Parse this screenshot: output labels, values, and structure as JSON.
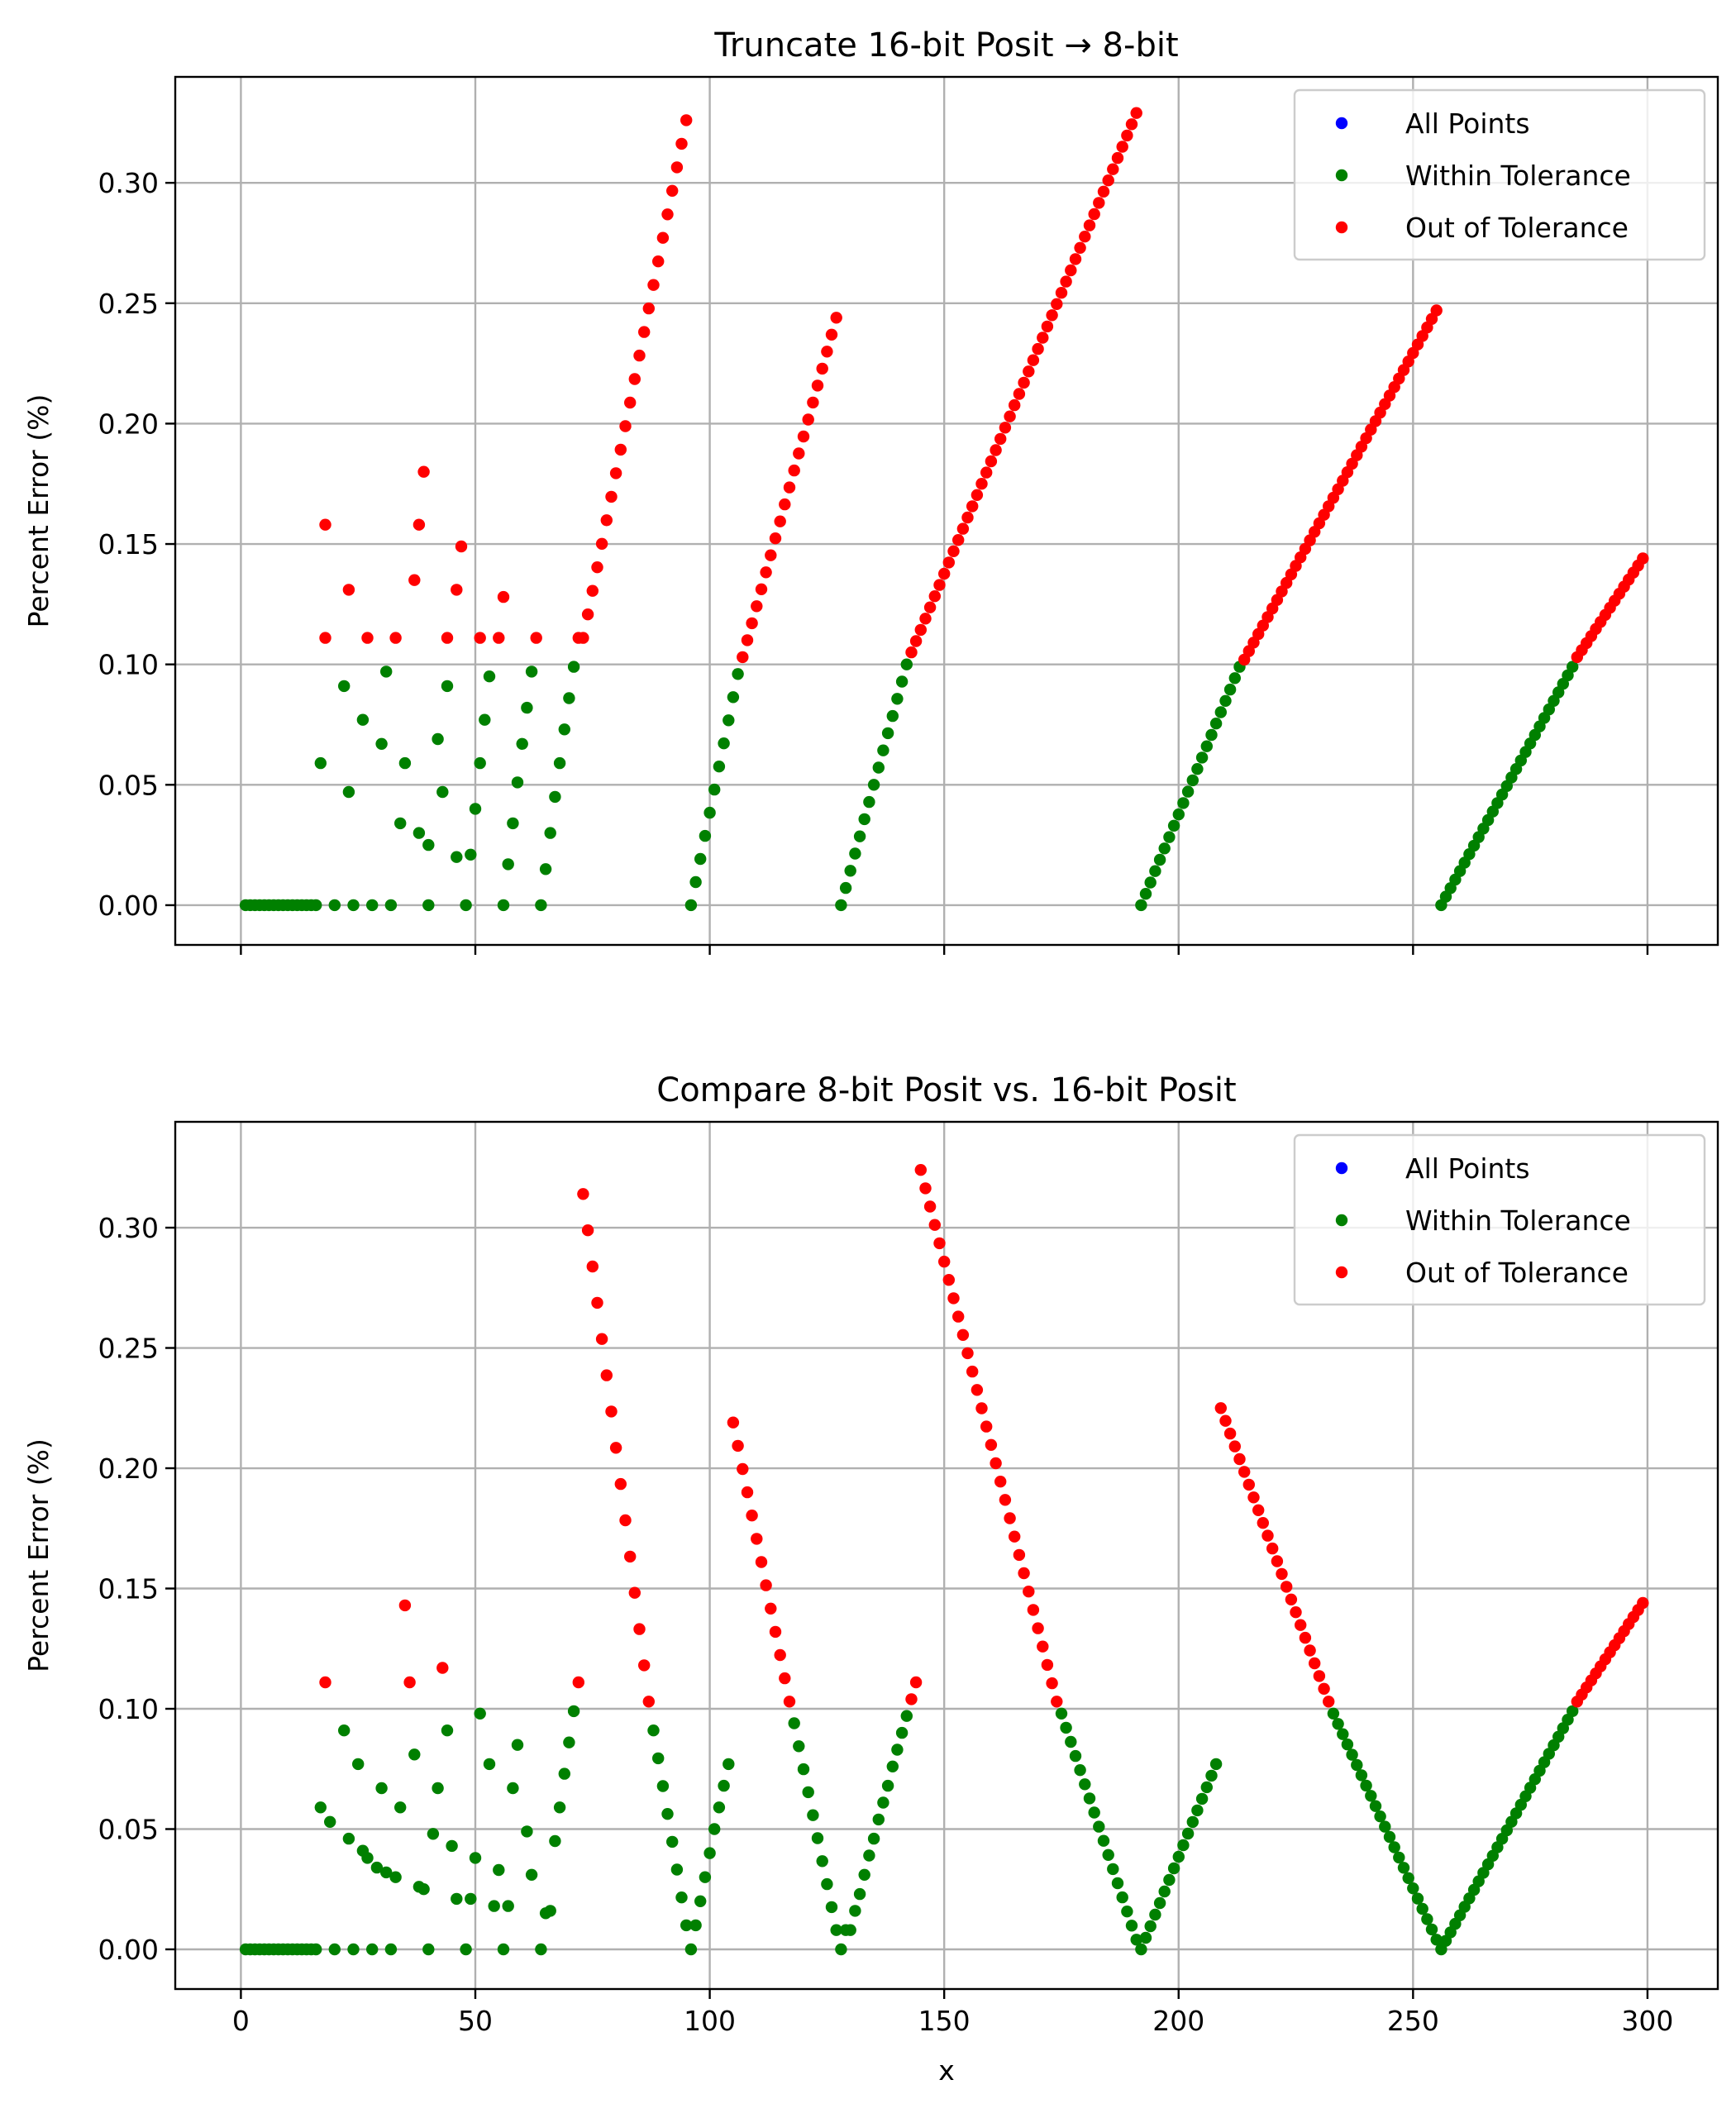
{
  "figure": {
    "xlabel": "x"
  },
  "legend": {
    "entries": [
      {
        "label": "All Points",
        "color": "#0000ff"
      },
      {
        "label": "Within Tolerance",
        "color": "#008000"
      },
      {
        "label": "Out of Tolerance",
        "color": "#ff0000"
      }
    ]
  },
  "tolerance": 0.1,
  "chart_data": [
    {
      "type": "scatter",
      "title": "Truncate 16-bit Posit → 8-bit",
      "xlabel": "",
      "ylabel": "Percent Error (%)",
      "xlim": [
        -14,
        315
      ],
      "ylim": [
        -0.0165,
        0.344
      ],
      "xticks": [
        0,
        50,
        100,
        150,
        200,
        250,
        300
      ],
      "xtick_labels_shown": false,
      "yticks": [
        "0.00",
        "0.05",
        "0.10",
        "0.15",
        "0.20",
        "0.25",
        "0.30"
      ],
      "grid": true,
      "legend_position": "top-right",
      "series": [
        {
          "kind": "points",
          "x": [
            1,
            2,
            3,
            4,
            5,
            6,
            7,
            8,
            9,
            10,
            11,
            12,
            13,
            14,
            15,
            16,
            20,
            24,
            28,
            32,
            40,
            48,
            56,
            64
          ],
          "y": [
            0,
            0,
            0,
            0,
            0,
            0,
            0,
            0,
            0,
            0,
            0,
            0,
            0,
            0,
            0,
            0,
            0,
            0,
            0,
            0,
            0,
            0,
            0,
            0
          ]
        },
        {
          "kind": "points",
          "x": [
            17,
            18,
            22,
            23,
            26,
            30,
            31,
            34,
            35,
            38,
            40,
            42,
            43,
            44,
            46,
            49,
            50,
            51,
            52,
            53,
            57,
            58,
            59,
            60,
            61,
            62,
            65,
            66,
            67,
            68,
            69,
            70,
            71
          ],
          "y": [
            0.059,
            0.111,
            0.091,
            0.047,
            0.077,
            0.067,
            0.097,
            0.034,
            0.059,
            0.03,
            0.025,
            0.069,
            0.047,
            0.091,
            0.02,
            0.021,
            0.04,
            0.059,
            0.077,
            0.095,
            0.017,
            0.034,
            0.051,
            0.067,
            0.082,
            0.097,
            0.015,
            0.03,
            0.045,
            0.059,
            0.073,
            0.086,
            0.099
          ]
        },
        {
          "kind": "points",
          "x": [
            18,
            23,
            27,
            33,
            37,
            38,
            39,
            44,
            46,
            47,
            51,
            55,
            56,
            63,
            72
          ],
          "y": [
            0.158,
            0.131,
            0.111,
            0.111,
            0.135,
            0.158,
            0.18,
            0.111,
            0.131,
            0.149,
            0.111,
            0.111,
            0.128,
            0.111,
            0.111
          ]
        },
        {
          "kind": "ramp",
          "x0": 73,
          "x1": 95,
          "y0": 0.111,
          "y1": 0.326
        },
        {
          "kind": "ramp",
          "x0": 96,
          "x1": 106,
          "y0": 0.0,
          "y1": 0.096
        },
        {
          "kind": "ramp",
          "x0": 107,
          "x1": 127,
          "y0": 0.103,
          "y1": 0.244
        },
        {
          "kind": "ramp",
          "x0": 128,
          "x1": 142,
          "y0": 0.0,
          "y1": 0.1
        },
        {
          "kind": "ramp",
          "x0": 143,
          "x1": 191,
          "y0": 0.105,
          "y1": 0.329
        },
        {
          "kind": "ramp",
          "x0": 192,
          "x1": 213,
          "y0": 0.0,
          "y1": 0.099
        },
        {
          "kind": "ramp",
          "x0": 214,
          "x1": 255,
          "y0": 0.102,
          "y1": 0.247
        },
        {
          "kind": "ramp",
          "x0": 256,
          "x1": 284,
          "y0": 0.0,
          "y1": 0.099
        },
        {
          "kind": "ramp",
          "x0": 285,
          "x1": 299,
          "y0": 0.103,
          "y1": 0.144
        }
      ]
    },
    {
      "type": "scatter",
      "title": "Compare 8-bit Posit vs. 16-bit Posit",
      "xlabel": "x",
      "ylabel": "Percent Error (%)",
      "xlim": [
        -14,
        315
      ],
      "ylim": [
        -0.0165,
        0.344
      ],
      "xticks": [
        0,
        50,
        100,
        150,
        200,
        250,
        300
      ],
      "xtick_labels_shown": true,
      "yticks": [
        "0.00",
        "0.05",
        "0.10",
        "0.15",
        "0.20",
        "0.25",
        "0.30"
      ],
      "grid": true,
      "legend_position": "top-right",
      "series": [
        {
          "kind": "points",
          "x": [
            1,
            2,
            3,
            4,
            5,
            6,
            7,
            8,
            9,
            10,
            11,
            12,
            13,
            14,
            15,
            16,
            20,
            24,
            28,
            32,
            40,
            48,
            56,
            64
          ],
          "y": [
            0,
            0,
            0,
            0,
            0,
            0,
            0,
            0,
            0,
            0,
            0,
            0,
            0,
            0,
            0,
            0,
            0,
            0,
            0,
            0,
            0,
            0,
            0,
            0
          ]
        },
        {
          "kind": "points",
          "x": [
            17,
            19,
            22,
            23,
            25,
            26,
            27,
            29,
            30,
            31,
            33,
            34,
            37,
            38,
            39,
            41,
            42,
            44,
            45,
            46,
            49,
            50,
            51,
            53,
            54,
            55,
            57,
            58,
            59,
            61,
            62,
            65,
            66,
            67,
            68,
            69,
            70,
            71
          ],
          "y": [
            0.059,
            0.053,
            0.091,
            0.046,
            0.077,
            0.041,
            0.038,
            0.034,
            0.067,
            0.032,
            0.03,
            0.059,
            0.081,
            0.026,
            0.025,
            0.048,
            0.067,
            0.091,
            0.043,
            0.021,
            0.021,
            0.038,
            0.098,
            0.077,
            0.018,
            0.033,
            0.018,
            0.067,
            0.085,
            0.049,
            0.031,
            0.015,
            0.016,
            0.045,
            0.059,
            0.073,
            0.086,
            0.099
          ]
        },
        {
          "kind": "points",
          "x": [
            18,
            35,
            36,
            43,
            72
          ],
          "y": [
            0.111,
            0.143,
            0.111,
            0.117,
            0.111
          ]
        },
        {
          "kind": "ramp",
          "x0": 73,
          "x1": 87,
          "y0": 0.314,
          "y1": 0.103
        },
        {
          "kind": "ramp",
          "x0": 88,
          "x1": 95,
          "y0": 0.091,
          "y1": 0.01
        },
        {
          "kind": "points",
          "x": [
            96,
            97,
            98,
            99,
            100,
            101,
            102,
            103,
            104
          ],
          "y": [
            0.0,
            0.01,
            0.02,
            0.03,
            0.04,
            0.05,
            0.059,
            0.068,
            0.077
          ]
        },
        {
          "kind": "ramp",
          "x0": 105,
          "x1": 117,
          "y0": 0.219,
          "y1": 0.103
        },
        {
          "kind": "ramp",
          "x0": 118,
          "x1": 127,
          "y0": 0.094,
          "y1": 0.008
        },
        {
          "kind": "points",
          "x": [
            128,
            129,
            130,
            131,
            132,
            133,
            134,
            135,
            136,
            137,
            138,
            139,
            140,
            141,
            142
          ],
          "y": [
            0.0,
            0.008,
            0.008,
            0.016,
            0.023,
            0.031,
            0.039,
            0.046,
            0.054,
            0.061,
            0.068,
            0.076,
            0.083,
            0.09,
            0.097
          ]
        },
        {
          "kind": "points",
          "x": [
            143,
            144
          ],
          "y": [
            0.104,
            0.111
          ]
        },
        {
          "kind": "ramp",
          "x0": 145,
          "x1": 174,
          "y0": 0.324,
          "y1": 0.103
        },
        {
          "kind": "ramp",
          "x0": 175,
          "x1": 191,
          "y0": 0.098,
          "y1": 0.004
        },
        {
          "kind": "ramp",
          "x0": 192,
          "x1": 208,
          "y0": 0.0,
          "y1": 0.077
        },
        {
          "kind": "ramp",
          "x0": 209,
          "x1": 232,
          "y0": 0.225,
          "y1": 0.103
        },
        {
          "kind": "ramp",
          "x0": 233,
          "x1": 255,
          "y0": 0.098,
          "y1": 0.004
        },
        {
          "kind": "ramp",
          "x0": 256,
          "x1": 284,
          "y0": 0.0,
          "y1": 0.099
        },
        {
          "kind": "ramp",
          "x0": 285,
          "x1": 299,
          "y0": 0.103,
          "y1": 0.144
        }
      ]
    }
  ]
}
